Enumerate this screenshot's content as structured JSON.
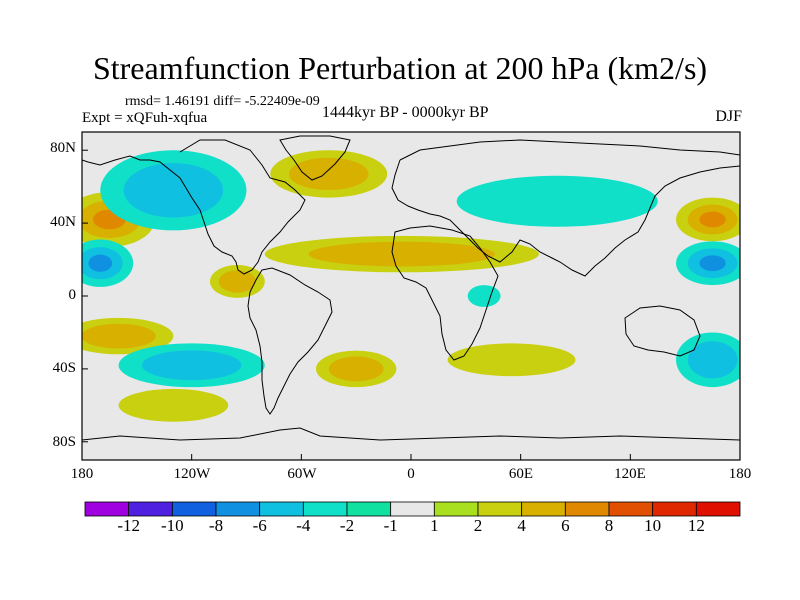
{
  "title": "Streamfunction Perturbation at 200 hPa (km2/s)",
  "stats_text": "rmsd= 1.46191 diff= -5.22409e-09",
  "experiment_text": "Expt = xQFuh-xqfua",
  "period_text": "1444kyr BP - 0000kyr BP",
  "season": "DJF",
  "colors": {
    "background": "#e8e8e8",
    "coast": "#000000",
    "levels": [
      "#a000e0",
      "#5020e0",
      "#1060e0",
      "#1090e0",
      "#10c0e0",
      "#10e0c8",
      "#10e0a0",
      "#e8e8e8",
      "#a8e020",
      "#c8d010",
      "#d8b000",
      "#e08800",
      "#e05000",
      "#e02800",
      "#e01000"
    ]
  },
  "axes": {
    "lat_labels": [
      "80N",
      "40N",
      "0",
      "40S",
      "80S"
    ],
    "lon_labels": [
      "180",
      "120W",
      "60W",
      "0",
      "60E",
      "120E",
      "180"
    ]
  },
  "colorbar": {
    "labels": [
      "-12",
      "-10",
      "-8",
      "-6",
      "-4",
      "-2",
      "-1",
      "1",
      "2",
      "4",
      "6",
      "8",
      "10",
      "12"
    ]
  },
  "map_data": {
    "type": "filled-contour",
    "projection": "cylindrical-equidistant",
    "lon_range": [
      -180,
      180
    ],
    "lat_range": [
      -90,
      90
    ],
    "units": "km2/s",
    "level_values": [
      -12,
      -10,
      -8,
      -6,
      -4,
      -2,
      -1,
      1,
      2,
      4,
      6,
      8,
      10,
      12
    ],
    "anomalies": [
      {
        "name": "n-pacific-high",
        "lon": -165,
        "lat": 42,
        "rx": 25,
        "ry": 15,
        "levels": [
          2,
          4,
          6
        ]
      },
      {
        "name": "n-pacific-high-east",
        "lon": 165,
        "lat": 42,
        "rx": 20,
        "ry": 12,
        "levels": [
          2,
          4,
          6
        ]
      },
      {
        "name": "subtropical-pacific-low-west",
        "lon": -170,
        "lat": 18,
        "rx": 18,
        "ry": 13,
        "levels": [
          -2,
          -4,
          -6
        ]
      },
      {
        "name": "subtropical-pacific-low-east",
        "lon": 165,
        "lat": 18,
        "rx": 20,
        "ry": 12,
        "levels": [
          -2,
          -4,
          -6
        ]
      },
      {
        "name": "north-american-low",
        "lon": -130,
        "lat": 58,
        "rx": 40,
        "ry": 22,
        "levels": [
          -2,
          -4
        ]
      },
      {
        "name": "greenland-high",
        "lon": -45,
        "lat": 67,
        "rx": 32,
        "ry": 13,
        "levels": [
          2,
          4
        ]
      },
      {
        "name": "eurasian-low",
        "lon": 80,
        "lat": 52,
        "rx": 55,
        "ry": 14,
        "levels": [
          -2
        ]
      },
      {
        "name": "atlantic-africa-high",
        "lon": -5,
        "lat": 23,
        "rx": 75,
        "ry": 10,
        "levels": [
          2,
          4
        ]
      },
      {
        "name": "central-america-high",
        "lon": -95,
        "lat": 8,
        "rx": 15,
        "ry": 9,
        "levels": [
          2,
          4
        ]
      },
      {
        "name": "south-pacific-high",
        "lon": -160,
        "lat": -22,
        "rx": 30,
        "ry": 10,
        "levels": [
          2,
          4
        ]
      },
      {
        "name": "south-pacific-low",
        "lon": -120,
        "lat": -38,
        "rx": 40,
        "ry": 12,
        "levels": [
          -2,
          -4
        ]
      },
      {
        "name": "south-atlantic-high",
        "lon": -30,
        "lat": -40,
        "rx": 22,
        "ry": 10,
        "levels": [
          2,
          4
        ]
      },
      {
        "name": "southern-ocean-high",
        "lon": -130,
        "lat": -60,
        "rx": 30,
        "ry": 9,
        "levels": [
          2
        ]
      },
      {
        "name": "indian-ocean-high",
        "lon": 55,
        "lat": -35,
        "rx": 35,
        "ry": 9,
        "levels": [
          2
        ]
      },
      {
        "name": "australia-low",
        "lon": 165,
        "lat": -35,
        "rx": 20,
        "ry": 15,
        "levels": [
          -2,
          -4
        ]
      },
      {
        "name": "east-africa-low",
        "lon": 40,
        "lat": 0,
        "rx": 9,
        "ry": 6,
        "levels": [
          -2
        ]
      }
    ]
  }
}
